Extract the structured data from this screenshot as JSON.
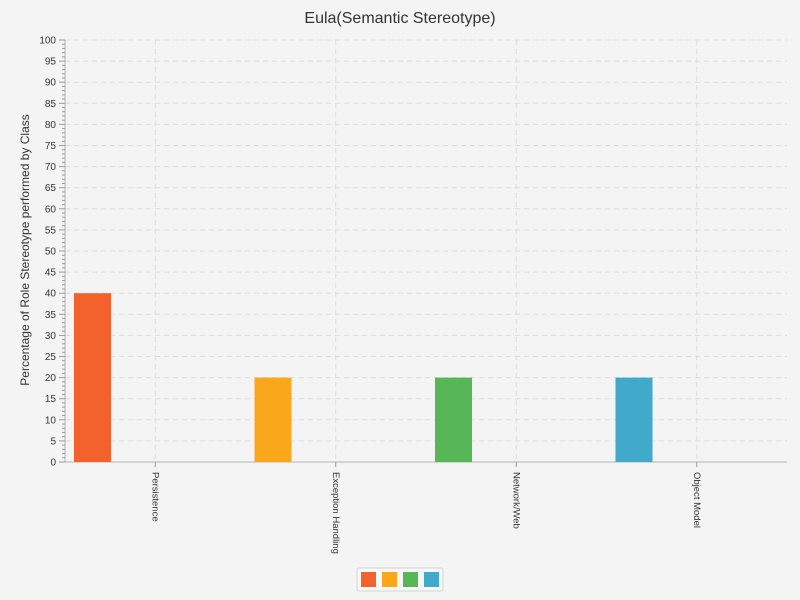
{
  "chart_data": {
    "type": "bar",
    "title": "Eula(Semantic Stereotype)",
    "xlabel": "",
    "ylabel": "Percentage of Role Stereotype performed by Class",
    "categories": [
      "Persistence",
      "Exception Handling",
      "Network/Web",
      "Object Model"
    ],
    "values": [
      40,
      20,
      20,
      20
    ],
    "colors": [
      "#f3622d",
      "#fba71b",
      "#57b757",
      "#41a9c9"
    ],
    "ylim": [
      0,
      100
    ],
    "yticks": [
      0,
      5,
      10,
      15,
      20,
      25,
      30,
      35,
      40,
      45,
      50,
      55,
      60,
      65,
      70,
      75,
      80,
      85,
      90,
      95,
      100
    ],
    "grid": true,
    "legend": "bottom-center"
  }
}
